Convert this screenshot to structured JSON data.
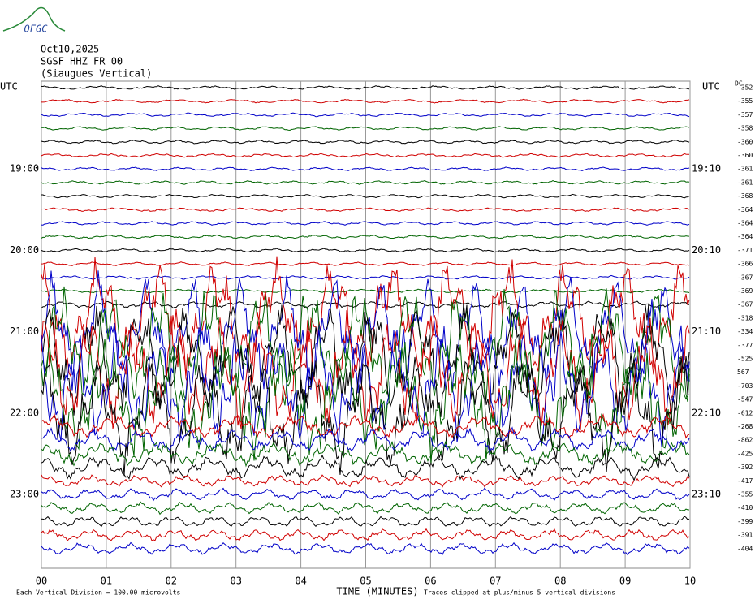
{
  "logo": "OFGC",
  "header": {
    "date": "Oct10,2025",
    "station": "SGSF HHZ FR 00",
    "site": "(Siaugues Vertical)"
  },
  "left_axis": {
    "title": "UTC",
    "labels": [
      "19:00",
      "20:00",
      "21:00",
      "22:00",
      "23:00"
    ]
  },
  "right_axis": {
    "title": "UTC",
    "labels": [
      "19:10",
      "20:10",
      "21:10",
      "22:10",
      "23:10"
    ]
  },
  "dc_header": "DC",
  "dc_offsets": [
    -352,
    -355,
    -357,
    -358,
    -360,
    -360,
    -361,
    -361,
    -368,
    -364,
    -364,
    -364,
    -371,
    -366,
    -367,
    -369,
    -367,
    -318,
    -334,
    -377,
    -525,
    567,
    -703,
    -547,
    -612,
    -268,
    -862,
    -425,
    -392,
    -417,
    -355,
    -410,
    -399,
    -391,
    -404
  ],
  "trace_colors": [
    "#000000",
    "#d00000",
    "#0000c8",
    "#006400"
  ],
  "x_axis": {
    "title": "TIME (MINUTES)",
    "ticks": [
      "00",
      "01",
      "02",
      "03",
      "04",
      "05",
      "06",
      "07",
      "08",
      "09",
      "10"
    ]
  },
  "footer": {
    "scale": "Each Vertical Division =  100.00 microvolts",
    "clip": "Traces clipped at plus/minus 5 vertical divisions"
  }
}
